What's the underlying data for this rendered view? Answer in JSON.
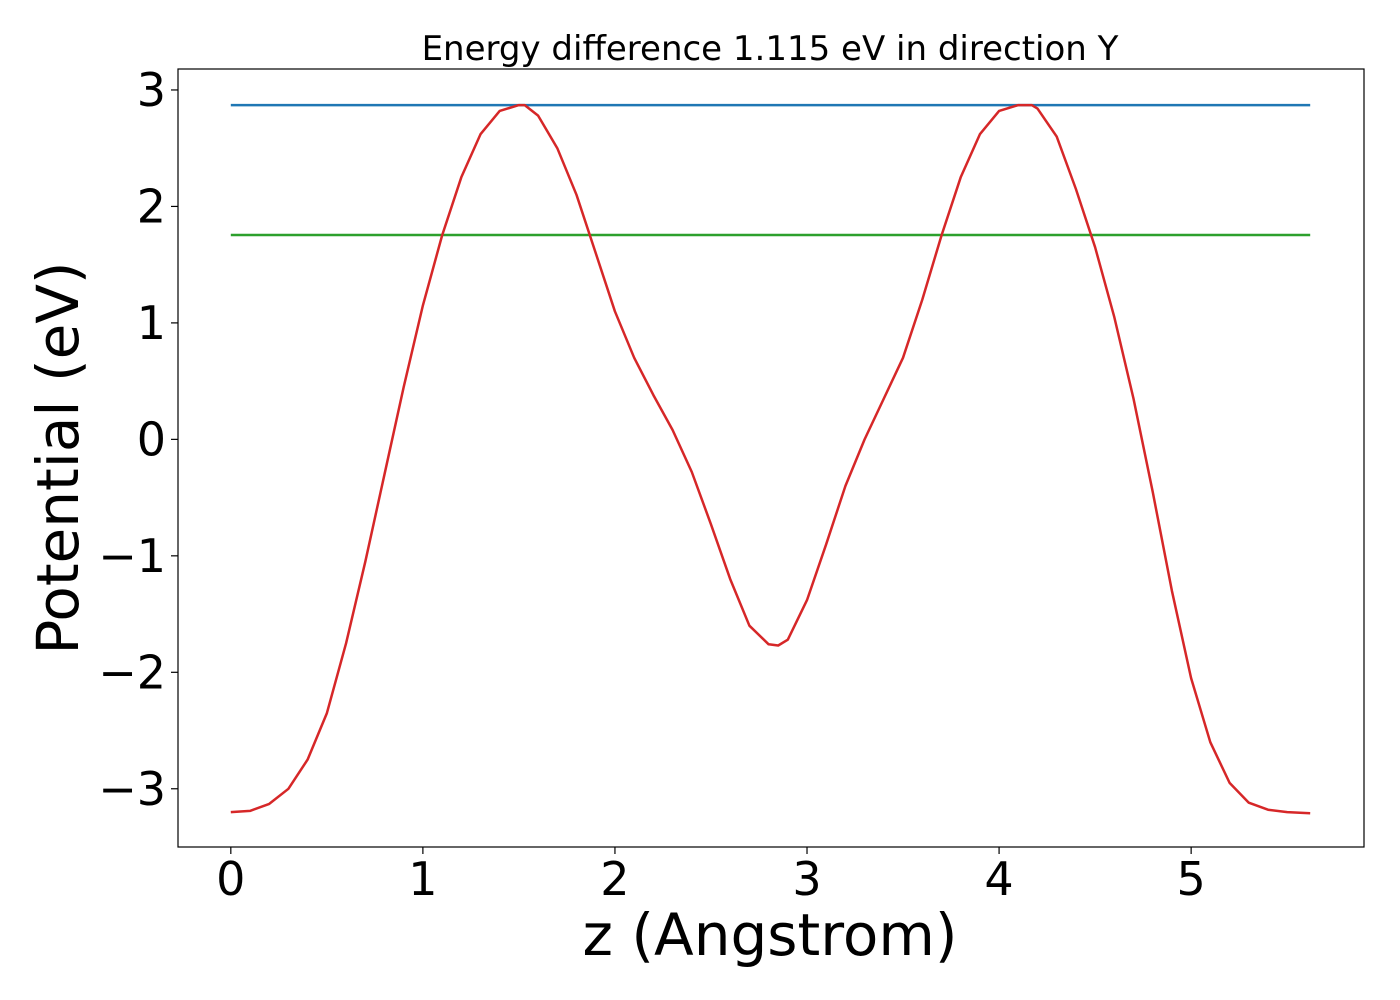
{
  "chart_data": {
    "type": "line",
    "title": "Energy difference 1.115 eV in direction Y",
    "xlabel": "z (Angstrom)",
    "ylabel": "Potential (eV)",
    "xlim": [
      -0.275,
      5.9
    ],
    "ylim": [
      -3.5,
      3.18
    ],
    "xticks": [
      0,
      1,
      2,
      3,
      4,
      5
    ],
    "yticks": [
      -3,
      -2,
      -1,
      0,
      1,
      2,
      3
    ],
    "grid": false,
    "series": [
      {
        "color": "#d62728",
        "x": [
          0.0,
          0.1,
          0.2,
          0.3,
          0.4,
          0.5,
          0.6,
          0.7,
          0.8,
          0.9,
          1.0,
          1.1,
          1.2,
          1.3,
          1.4,
          1.5,
          1.53,
          1.6,
          1.7,
          1.8,
          1.9,
          2.0,
          2.1,
          2.2,
          2.3,
          2.4,
          2.5,
          2.6,
          2.7,
          2.8,
          2.85,
          2.9,
          3.0,
          3.1,
          3.2,
          3.3,
          3.4,
          3.5,
          3.6,
          3.7,
          3.8,
          3.9,
          4.0,
          4.1,
          4.17,
          4.2,
          4.3,
          4.4,
          4.5,
          4.6,
          4.7,
          4.8,
          4.9,
          5.0,
          5.1,
          5.2,
          5.3,
          5.4,
          5.5,
          5.62
        ],
        "y": [
          -3.2,
          -3.19,
          -3.13,
          -3.0,
          -2.75,
          -2.35,
          -1.75,
          -1.05,
          -0.3,
          0.45,
          1.15,
          1.75,
          2.25,
          2.62,
          2.82,
          2.87,
          2.87,
          2.78,
          2.5,
          2.1,
          1.6,
          1.1,
          0.7,
          0.38,
          0.08,
          -0.28,
          -0.73,
          -1.2,
          -1.6,
          -1.76,
          -1.77,
          -1.72,
          -1.38,
          -0.9,
          -0.4,
          0.0,
          0.35,
          0.7,
          1.2,
          1.75,
          2.25,
          2.62,
          2.82,
          2.87,
          2.87,
          2.84,
          2.6,
          2.15,
          1.65,
          1.05,
          0.35,
          -0.45,
          -1.3,
          -2.05,
          -2.6,
          -2.95,
          -3.12,
          -3.18,
          -3.2,
          -3.21
        ]
      },
      {
        "color": "#1f77b4",
        "x": [
          0.0,
          5.62
        ],
        "y": [
          2.87,
          2.87
        ]
      },
      {
        "color": "#2ca02c",
        "x": [
          0.0,
          5.62
        ],
        "y": [
          1.755,
          1.755
        ]
      }
    ]
  }
}
